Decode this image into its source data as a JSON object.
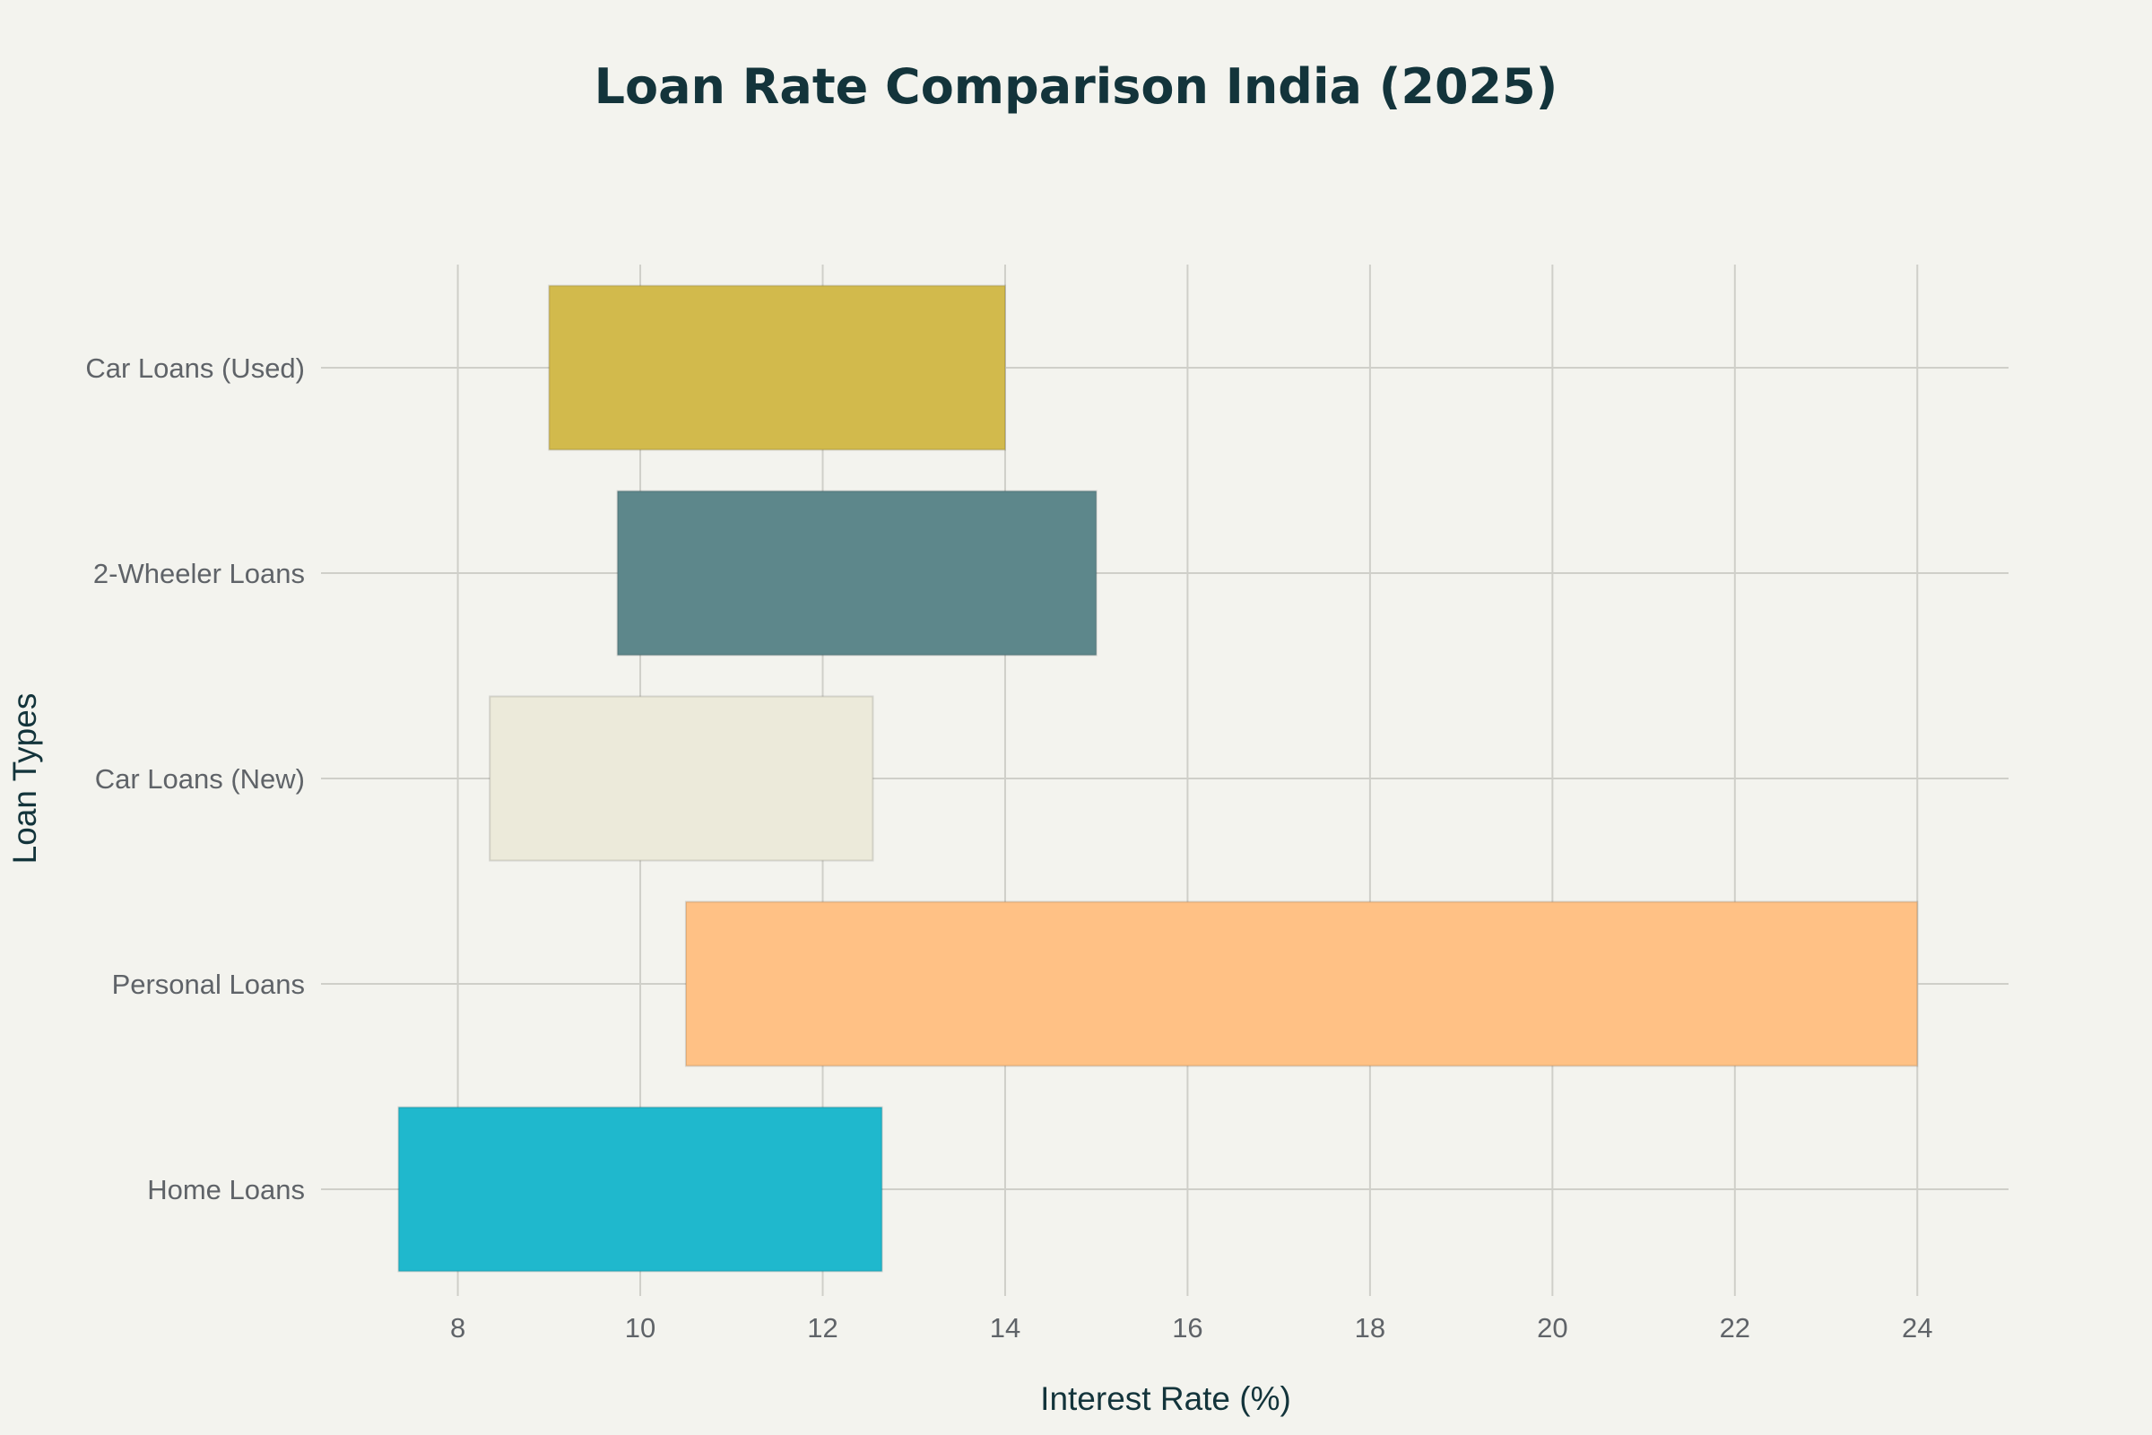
{
  "chart_data": {
    "type": "bar",
    "orientation": "horizontal",
    "title": "Loan Rate Comparison India (2025)",
    "xlabel": "Interest Rate (%)",
    "ylabel": "Loan Types",
    "xlim": [
      6.5,
      25
    ],
    "xticks": [
      8,
      10,
      12,
      14,
      16,
      18,
      20,
      22,
      24
    ],
    "grid": true,
    "categories": [
      "Car Loans (Used)",
      "2-Wheeler Loans",
      "Car Loans (New)",
      "Personal Loans",
      "Home Loans"
    ],
    "ranges": [
      {
        "category": "Car Loans (Used)",
        "min": 9.0,
        "max": 14.0,
        "color": "#d2ba4c"
      },
      {
        "category": "2-Wheeler Loans",
        "min": 9.75,
        "max": 15.0,
        "color": "#5d878b"
      },
      {
        "category": "Car Loans (New)",
        "min": 8.35,
        "max": 12.55,
        "color": "#eceada"
      },
      {
        "category": "Personal Loans",
        "min": 10.5,
        "max": 24.0,
        "color": "#ffc185"
      },
      {
        "category": "Home Loans",
        "min": 7.35,
        "max": 12.65,
        "color": "#1fb8cd"
      }
    ]
  }
}
